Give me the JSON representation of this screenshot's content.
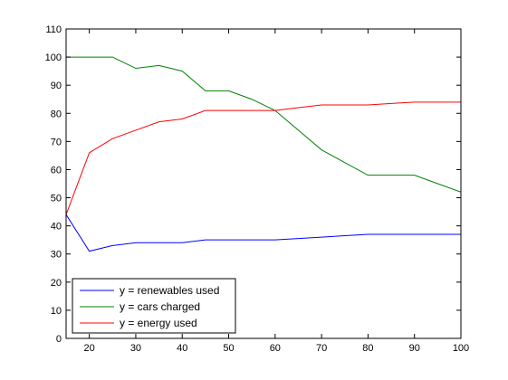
{
  "chart_data": {
    "type": "line",
    "title": "",
    "xlabel": "",
    "ylabel": "",
    "xlim": [
      15,
      100
    ],
    "ylim": [
      0,
      110
    ],
    "xticks": [
      20,
      30,
      40,
      50,
      60,
      70,
      80,
      90,
      100
    ],
    "yticks": [
      0,
      10,
      20,
      30,
      40,
      50,
      60,
      70,
      80,
      90,
      100,
      110
    ],
    "grid": false,
    "legend_position": "bottom-left",
    "series": [
      {
        "name": "y = renewables used",
        "color": "#0000ff",
        "x": [
          15,
          20,
          25,
          30,
          35,
          40,
          45,
          50,
          55,
          60,
          65,
          70,
          75,
          80,
          85,
          90,
          95,
          100
        ],
        "y": [
          44,
          31,
          33,
          34,
          34,
          34,
          35,
          35,
          35,
          35,
          35.5,
          36,
          36.5,
          37,
          37,
          37,
          37,
          37
        ]
      },
      {
        "name": "y = cars charged",
        "color": "#008000",
        "x": [
          15,
          20,
          25,
          30,
          35,
          40,
          45,
          50,
          55,
          60,
          65,
          70,
          75,
          80,
          85,
          90,
          95,
          100
        ],
        "y": [
          100,
          100,
          100,
          96,
          97,
          95,
          88,
          88,
          85,
          81,
          74,
          67,
          62.5,
          58,
          58,
          58,
          55,
          52
        ]
      },
      {
        "name": "y = energy used",
        "color": "#ff0000",
        "x": [
          15,
          20,
          25,
          30,
          35,
          40,
          45,
          50,
          55,
          60,
          65,
          70,
          75,
          80,
          85,
          90,
          95,
          100
        ],
        "y": [
          44,
          66,
          71,
          74,
          77,
          78,
          81,
          81,
          81,
          81,
          82,
          83,
          83,
          83,
          83.5,
          84,
          84,
          84
        ]
      }
    ]
  }
}
